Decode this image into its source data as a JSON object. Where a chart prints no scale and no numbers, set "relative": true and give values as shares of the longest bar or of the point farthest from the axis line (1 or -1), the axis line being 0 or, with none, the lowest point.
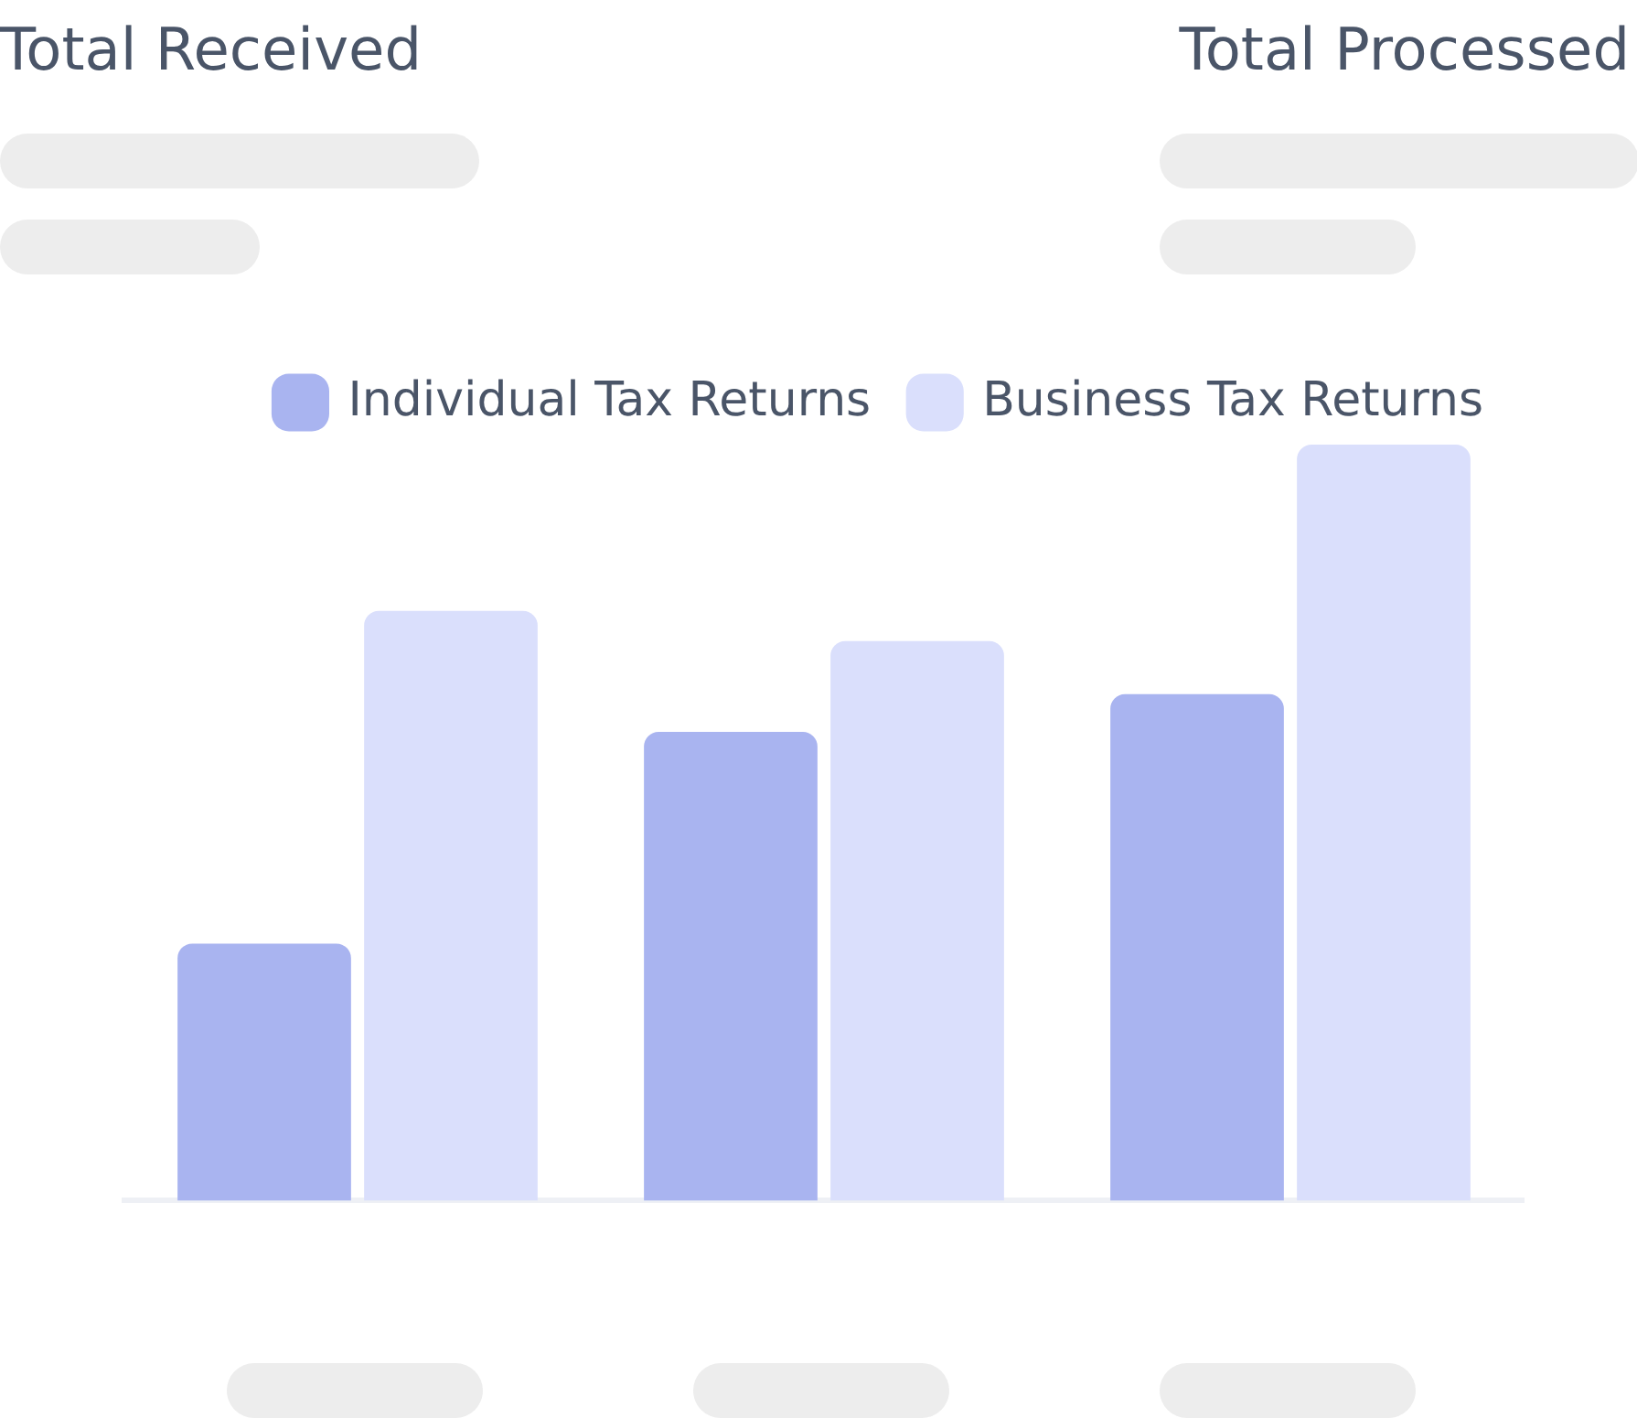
{
  "chart_data": {
    "type": "bar",
    "relative": true,
    "annotations": [
      "Total Received",
      "Total Processed"
    ],
    "categories": [
      null,
      null,
      null
    ],
    "series": [
      {
        "name": "Individual Tax Returns",
        "color": "#a9b4f0",
        "values": [
          0.34,
          0.62,
          0.67
        ]
      },
      {
        "name": "Business Tax Returns",
        "color": "#dadffc",
        "values": [
          0.78,
          0.74,
          1
        ]
      }
    ],
    "legend": "top right",
    "grid": false
  }
}
